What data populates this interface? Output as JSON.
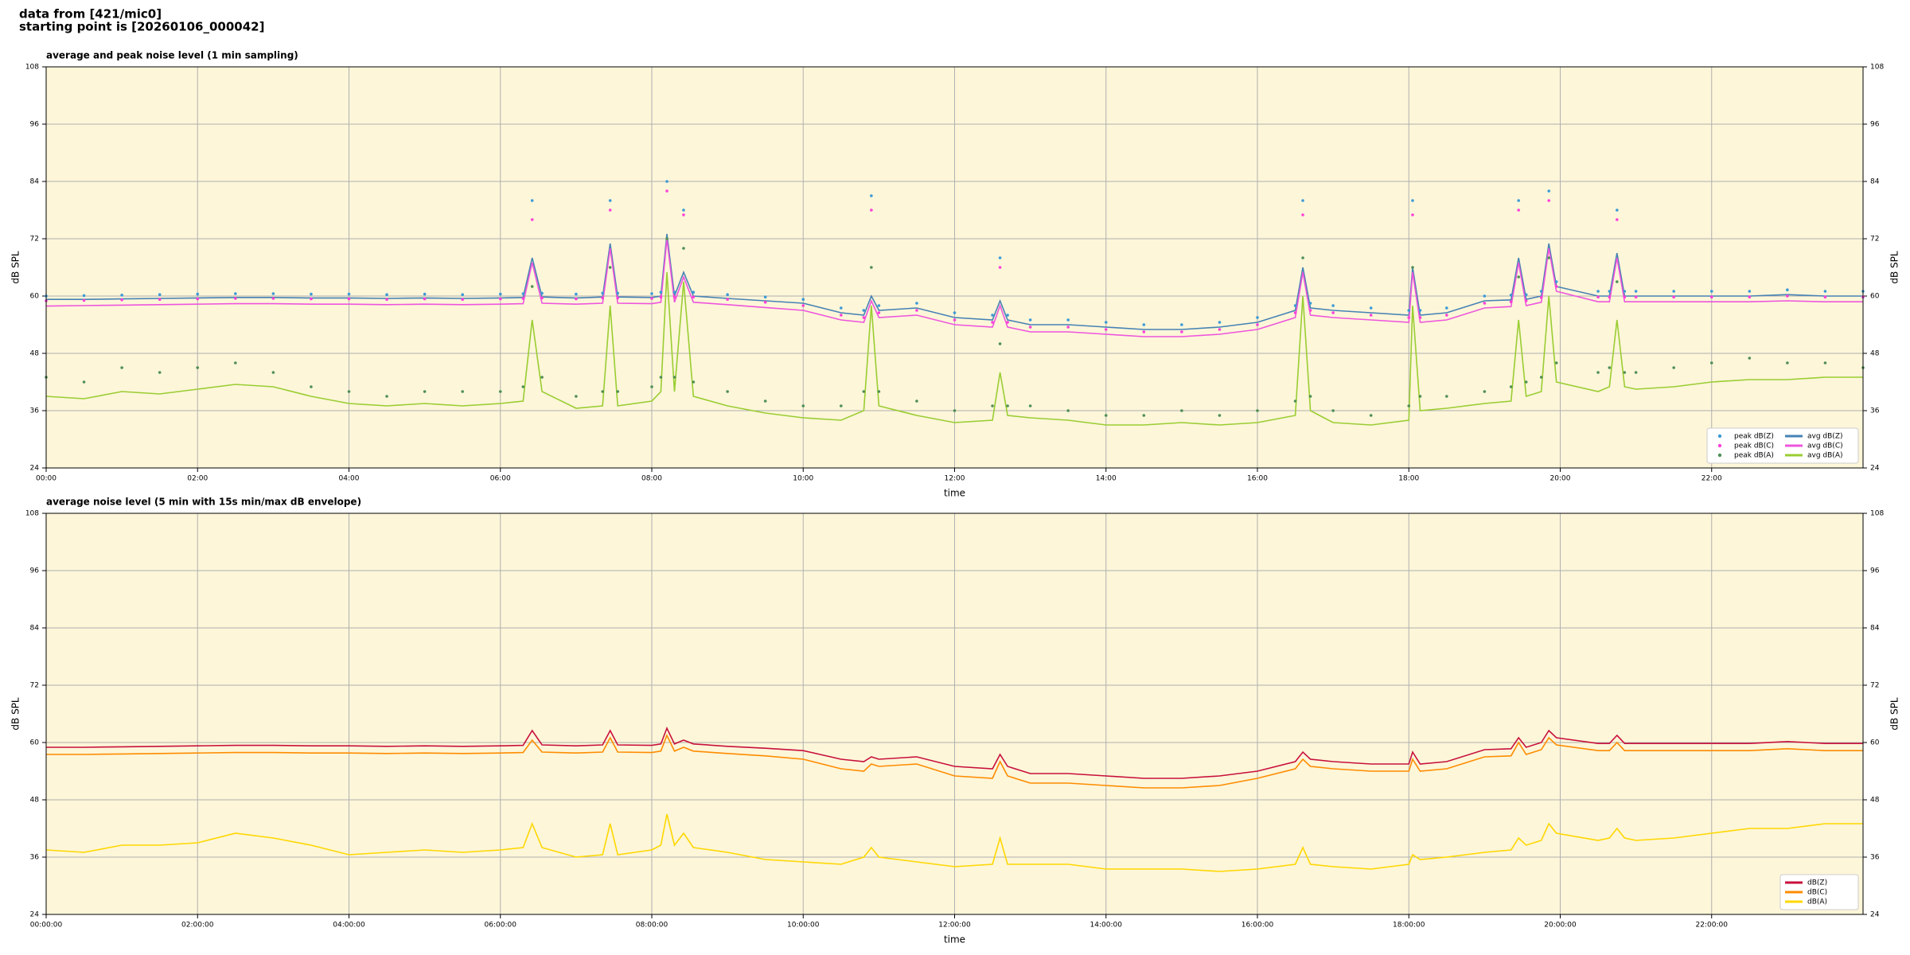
{
  "header": {
    "line1": "data from [421/mic0]",
    "line2": "starting point is [20260106_000042]"
  },
  "chart_data": [
    {
      "type": "line",
      "title": "average and peak noise level (1 min sampling)",
      "xlabel": "time",
      "ylabel": "dB SPL",
      "x": [
        0,
        0.5,
        1,
        1.5,
        2,
        2.5,
        3,
        3.5,
        4,
        4.5,
        5,
        5.5,
        6,
        6.3,
        6.42,
        6.55,
        7,
        7.35,
        7.45,
        7.55,
        8,
        8.12,
        8.2,
        8.3,
        8.42,
        8.55,
        9,
        9.5,
        10,
        10.5,
        10.8,
        10.9,
        11,
        11.5,
        12,
        12.5,
        12.6,
        12.7,
        13,
        13.5,
        14,
        14.5,
        15,
        15.5,
        16,
        16.5,
        16.6,
        16.7,
        17,
        17.5,
        18,
        18.05,
        18.15,
        18.5,
        19,
        19.35,
        19.45,
        19.55,
        19.75,
        19.85,
        19.95,
        20.5,
        20.65,
        20.75,
        20.85,
        21,
        21.5,
        22,
        22.5,
        23,
        23.5,
        24
      ],
      "xlim": [
        0,
        24
      ],
      "xticks": [
        {
          "value": 0,
          "label": "00:00"
        },
        {
          "value": 2,
          "label": "02:00"
        },
        {
          "value": 4,
          "label": "04:00"
        },
        {
          "value": 6,
          "label": "06:00"
        },
        {
          "value": 8,
          "label": "08:00"
        },
        {
          "value": 10,
          "label": "10:00"
        },
        {
          "value": 12,
          "label": "12:00"
        },
        {
          "value": 14,
          "label": "14:00"
        },
        {
          "value": 16,
          "label": "16:00"
        },
        {
          "value": 18,
          "label": "18:00"
        },
        {
          "value": 20,
          "label": "20:00"
        },
        {
          "value": 22,
          "label": "22:00"
        }
      ],
      "ylim": [
        24,
        108
      ],
      "yticks": [
        24,
        36,
        48,
        60,
        72,
        84,
        96,
        108
      ],
      "grid": true,
      "legend": "lower right",
      "series": [
        {
          "name": "peak dB(Z)",
          "style": "scatter",
          "color": "#3c9ad6",
          "values": [
            60,
            60.1,
            60.2,
            60.3,
            60.4,
            60.5,
            60.5,
            60.4,
            60.4,
            60.3,
            60.4,
            60.3,
            60.4,
            60.5,
            80,
            60.6,
            60.4,
            60.6,
            80,
            60.6,
            60.5,
            60.8,
            84,
            60.8,
            78,
            60.8,
            60.3,
            59.8,
            59.3,
            57.5,
            57,
            81,
            58,
            58.5,
            56.5,
            56,
            68,
            56,
            55,
            55,
            54.5,
            54,
            54,
            54.5,
            55.5,
            58,
            80,
            58.5,
            58,
            57.5,
            57,
            80,
            57,
            57.5,
            60,
            60.2,
            80,
            60.3,
            61,
            82,
            63,
            61,
            61,
            78,
            61,
            61,
            61,
            61,
            61,
            61.3,
            61,
            61
          ]
        },
        {
          "name": "peak dB(C)",
          "style": "scatter",
          "color": "#ff3fd9",
          "values": [
            59,
            59.1,
            59.2,
            59.3,
            59.4,
            59.5,
            59.5,
            59.4,
            59.4,
            59.3,
            59.4,
            59.3,
            59.4,
            59.5,
            76,
            59.6,
            59.4,
            59.6,
            78,
            59.6,
            59.5,
            59.8,
            82,
            59.8,
            77,
            59.8,
            59.3,
            58.7,
            58,
            56,
            55.5,
            78,
            56.5,
            57,
            55,
            54.5,
            66,
            54.5,
            53.5,
            53.5,
            53,
            52.5,
            52.5,
            53,
            54,
            56.5,
            77,
            57,
            56.5,
            56,
            55.5,
            77,
            55.5,
            56,
            58.5,
            58.8,
            78,
            59,
            59.7,
            80,
            62,
            59.8,
            59.8,
            76,
            59.8,
            59.8,
            59.8,
            59.8,
            59.8,
            60,
            59.8,
            59.8
          ]
        },
        {
          "name": "peak dB(A)",
          "style": "scatter",
          "color": "#4f8f55",
          "values": [
            43,
            42,
            45,
            44,
            45,
            46,
            44,
            41,
            40,
            39,
            40,
            40,
            40,
            41,
            62,
            43,
            39,
            40,
            66,
            40,
            41,
            43,
            72,
            43,
            70,
            42,
            40,
            38,
            37,
            37,
            40,
            66,
            40,
            38,
            36,
            37,
            50,
            37,
            37,
            36,
            35,
            35,
            36,
            35,
            36,
            38,
            68,
            39,
            36,
            35,
            37,
            66,
            39,
            39,
            40,
            41,
            64,
            42,
            43,
            68,
            46,
            44,
            45,
            63,
            44,
            44,
            45,
            46,
            47,
            46,
            46,
            45
          ]
        },
        {
          "name": "avg dB(Z)",
          "style": "line",
          "color": "#4682b4",
          "values": [
            59.3,
            59.3,
            59.4,
            59.5,
            59.6,
            59.7,
            59.7,
            59.6,
            59.6,
            59.5,
            59.6,
            59.5,
            59.6,
            59.7,
            68,
            59.8,
            59.6,
            59.8,
            71,
            59.8,
            59.7,
            60,
            73,
            60,
            65,
            60,
            59.5,
            59,
            58.5,
            56.5,
            56,
            60,
            57,
            57.5,
            55.5,
            55,
            59,
            55,
            54,
            54,
            53.5,
            53,
            53,
            53.5,
            54.5,
            57,
            66,
            57.5,
            57,
            56.5,
            56,
            66,
            56,
            56.5,
            59,
            59.2,
            68,
            59.3,
            60,
            71,
            62,
            60,
            60,
            69,
            60,
            60,
            60,
            60,
            60,
            60.3,
            60,
            60
          ]
        },
        {
          "name": "avg dB(C)",
          "style": "line",
          "color": "#ee55dd",
          "values": [
            57.9,
            58,
            58.1,
            58.2,
            58.3,
            58.4,
            58.4,
            58.3,
            58.3,
            58.2,
            58.3,
            58.2,
            58.3,
            58.4,
            67,
            58.5,
            58.3,
            58.5,
            70,
            58.5,
            58.4,
            58.7,
            72,
            58.7,
            64,
            58.7,
            58.2,
            57.6,
            57,
            55,
            54.5,
            59,
            55.5,
            56,
            54,
            53.5,
            58,
            53.5,
            52.5,
            52.5,
            52,
            51.5,
            51.5,
            52,
            53,
            55.5,
            65,
            56,
            55.5,
            55,
            54.5,
            65,
            54.5,
            55,
            57.5,
            57.8,
            67,
            58,
            58.7,
            70,
            61,
            58.8,
            58.8,
            68,
            58.8,
            58.8,
            58.8,
            58.8,
            58.8,
            59,
            58.8,
            58.8
          ]
        },
        {
          "name": "avg dB(A)",
          "style": "line",
          "color": "#9acd32",
          "values": [
            39,
            38.5,
            40,
            39.5,
            40.5,
            41.5,
            41,
            39,
            37.5,
            37,
            37.5,
            37,
            37.5,
            38,
            55,
            40,
            36.5,
            37,
            58,
            37,
            38,
            40,
            65,
            40,
            63,
            39,
            37,
            35.5,
            34.5,
            34,
            36,
            58,
            37,
            35,
            33.5,
            34,
            44,
            35,
            34.5,
            34,
            33,
            33,
            33.5,
            33,
            33.5,
            35,
            60,
            36,
            33.5,
            33,
            34,
            58,
            36,
            36.5,
            37.5,
            38,
            55,
            39,
            40,
            60,
            42,
            40,
            41,
            55,
            41,
            40.5,
            41,
            42,
            42.5,
            42.5,
            43,
            43
          ]
        }
      ]
    },
    {
      "type": "line",
      "title": "average noise level (5 min with 15s min/max dB envelope)",
      "xlabel": "time",
      "ylabel": "dB SPL",
      "x": [
        0,
        0.5,
        1,
        1.5,
        2,
        2.5,
        3,
        3.5,
        4,
        4.5,
        5,
        5.5,
        6,
        6.3,
        6.42,
        6.55,
        7,
        7.35,
        7.45,
        7.55,
        8,
        8.12,
        8.2,
        8.3,
        8.42,
        8.55,
        9,
        9.5,
        10,
        10.5,
        10.8,
        10.9,
        11,
        11.5,
        12,
        12.5,
        12.6,
        12.7,
        13,
        13.5,
        14,
        14.5,
        15,
        15.5,
        16,
        16.5,
        16.6,
        16.7,
        17,
        17.5,
        18,
        18.05,
        18.15,
        18.5,
        19,
        19.35,
        19.45,
        19.55,
        19.75,
        19.85,
        19.95,
        20.5,
        20.65,
        20.75,
        20.85,
        21,
        21.5,
        22,
        22.5,
        23,
        23.5,
        24
      ],
      "xlim": [
        0,
        24
      ],
      "xticks": [
        {
          "value": 0,
          "label": "00:00:00"
        },
        {
          "value": 2,
          "label": "02:00:00"
        },
        {
          "value": 4,
          "label": "04:00:00"
        },
        {
          "value": 6,
          "label": "06:00:00"
        },
        {
          "value": 8,
          "label": "08:00:00"
        },
        {
          "value": 10,
          "label": "10:00:00"
        },
        {
          "value": 12,
          "label": "12:00:00"
        },
        {
          "value": 14,
          "label": "14:00:00"
        },
        {
          "value": 16,
          "label": "16:00:00"
        },
        {
          "value": 18,
          "label": "18:00:00"
        },
        {
          "value": 20,
          "label": "20:00:00"
        },
        {
          "value": 22,
          "label": "22:00:00"
        }
      ],
      "ylim": [
        24,
        108
      ],
      "yticks": [
        24,
        36,
        48,
        60,
        72,
        84,
        96,
        108
      ],
      "grid": true,
      "legend": "lower right",
      "series": [
        {
          "name": "dB(Z)",
          "style": "line",
          "color": "#c8103c",
          "values": [
            59,
            59,
            59.1,
            59.2,
            59.3,
            59.4,
            59.4,
            59.3,
            59.3,
            59.2,
            59.3,
            59.2,
            59.3,
            59.4,
            62.5,
            59.5,
            59.3,
            59.5,
            62.5,
            59.5,
            59.4,
            59.7,
            63,
            59.7,
            60.5,
            59.7,
            59.2,
            58.8,
            58.3,
            56.5,
            56,
            57,
            56.5,
            57,
            55,
            54.5,
            57.5,
            55,
            53.5,
            53.5,
            53,
            52.5,
            52.5,
            53,
            54,
            56,
            58,
            56.5,
            56,
            55.5,
            55.5,
            58,
            55.5,
            56,
            58.5,
            58.7,
            61,
            59,
            60,
            62.5,
            61,
            59.8,
            59.8,
            61.5,
            59.8,
            59.8,
            59.8,
            59.8,
            59.8,
            60.2,
            59.8,
            59.8
          ]
        },
        {
          "name": "dB(C)",
          "style": "line",
          "color": "#ff8c00",
          "values": [
            57.5,
            57.5,
            57.6,
            57.7,
            57.8,
            57.9,
            57.9,
            57.8,
            57.8,
            57.7,
            57.8,
            57.7,
            57.8,
            57.9,
            60.5,
            58,
            57.8,
            58,
            61,
            58,
            57.9,
            58.2,
            61.5,
            58.2,
            59,
            58.2,
            57.7,
            57.2,
            56.5,
            54.5,
            54,
            55.5,
            55,
            55.5,
            53,
            52.5,
            56,
            53,
            51.5,
            51.5,
            51,
            50.5,
            50.5,
            51,
            52.5,
            54.5,
            56.5,
            55,
            54.5,
            54,
            54,
            56.5,
            54,
            54.5,
            57,
            57.2,
            60,
            57.5,
            58.5,
            61,
            59.5,
            58.3,
            58.3,
            60,
            58.3,
            58.3,
            58.3,
            58.3,
            58.3,
            58.7,
            58.3,
            58.3
          ]
        },
        {
          "name": "dB(A)",
          "style": "line",
          "color": "#ffd700",
          "values": [
            37.5,
            37,
            38.5,
            38.5,
            39,
            41,
            40,
            38.5,
            36.5,
            37,
            37.5,
            37,
            37.5,
            38,
            43,
            38,
            36,
            36.5,
            43,
            36.5,
            37.5,
            38.5,
            45,
            38.5,
            41,
            38,
            37,
            35.5,
            35,
            34.5,
            36,
            38,
            36,
            35,
            34,
            34.5,
            40,
            34.5,
            34.5,
            34.5,
            33.5,
            33.5,
            33.5,
            33,
            33.5,
            34.5,
            38,
            34.5,
            34,
            33.5,
            34.5,
            36.5,
            35.5,
            36,
            37,
            37.5,
            40,
            38.5,
            39.5,
            43,
            41,
            39.5,
            40,
            42,
            40,
            39.5,
            40,
            41,
            42,
            42,
            43,
            43
          ]
        }
      ]
    }
  ]
}
